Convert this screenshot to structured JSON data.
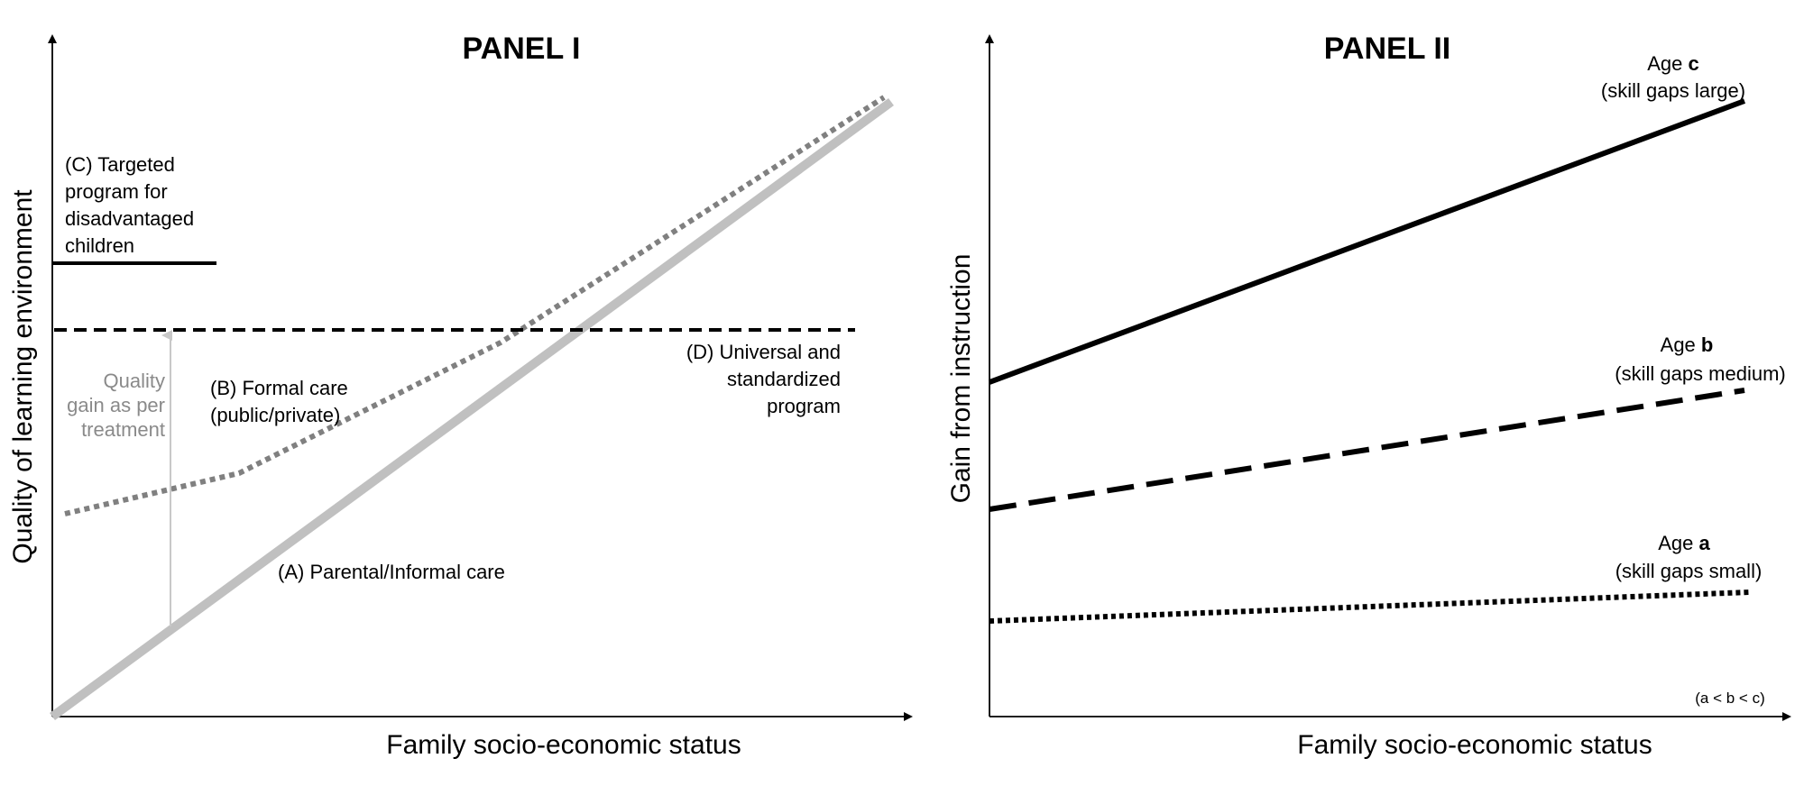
{
  "panel1": {
    "title": "PANEL I",
    "x_axis_label": "Family socio-economic status",
    "y_axis_label": "Quality of learning environment",
    "series": {
      "A": {
        "label": "(A) Parental/Informal care"
      },
      "B": {
        "label_line1": "(B) Formal care",
        "label_line2": "(public/private)"
      },
      "C": {
        "label_line1": "(C) Targeted",
        "label_line2": "program for",
        "label_line3": "disadvantaged",
        "label_line4": "children"
      },
      "D": {
        "label_line1": "(D) Universal and",
        "label_line2": "standardized",
        "label_line3": "program"
      }
    },
    "quality_gain": {
      "line1": "Quality",
      "line2": "gain as per",
      "line3": "treatment"
    },
    "colors": {
      "A": "#c0c0c0",
      "B": "#808080",
      "C": "#000000",
      "D": "#000000",
      "gain_arrow": "#c8c8c8"
    }
  },
  "panel2": {
    "title": "PANEL II",
    "x_axis_label": "Family socio-economic status",
    "y_axis_label": "Gain from instruction",
    "series": {
      "c": {
        "prefix": "Age ",
        "age": "c",
        "desc": "(skill gaps large)"
      },
      "b": {
        "prefix": "Age ",
        "age": "b",
        "desc": "(skill gaps medium)"
      },
      "a": {
        "prefix": "Age ",
        "age": "a",
        "desc": "(skill gaps small)"
      }
    },
    "note": "(a < b < c)"
  }
}
